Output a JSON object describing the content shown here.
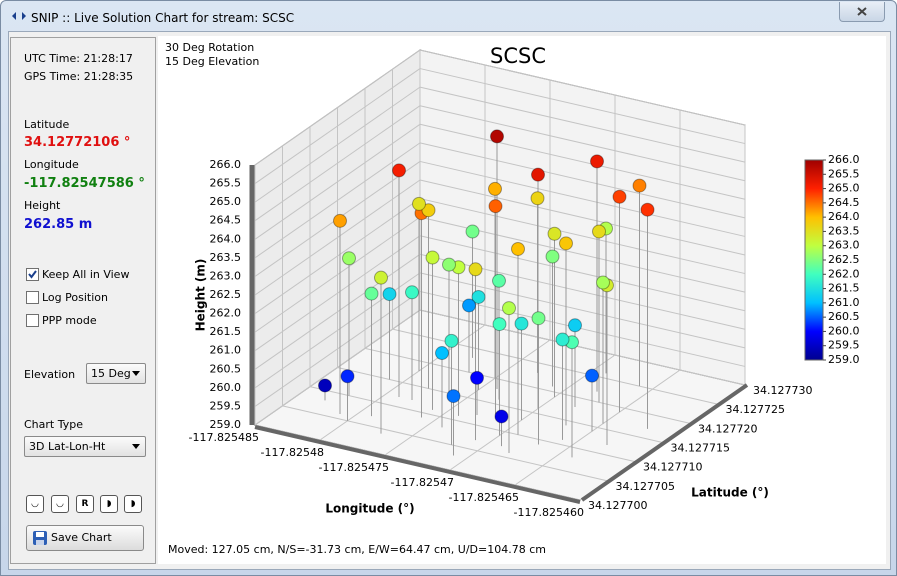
{
  "window": {
    "title": "SNIP :: Live Solution Chart for stream:  SCSC"
  },
  "sidebar": {
    "utc_time": "UTC Time: 21:28:17",
    "gps_time": "GPS Time: 21:28:35",
    "latitude_label": "Latitude",
    "latitude": "34.12772106 °",
    "longitude_label": "Longitude",
    "longitude": "-117.82547586 °",
    "height_label": "Height",
    "height": "262.85 m",
    "checkboxes": [
      {
        "label": "Keep All in View",
        "checked": true
      },
      {
        "label": "Log Position",
        "checked": false
      },
      {
        "label": "PPP mode",
        "checked": false
      }
    ],
    "elevation_label": "Elevation",
    "elevation_value": "15 Deg",
    "chart_type_label": "Chart Type",
    "chart_type_value": "3D Lat-Lon-Ht",
    "reset_button": "R",
    "save_button": "Save Chart"
  },
  "chart_data": {
    "type": "scatter3d",
    "title": "SCSC",
    "annotations": [
      "30 Deg Rotation",
      "15 Deg Elevation"
    ],
    "footer": "Moved: 127.05 cm, N/S=-31.73 cm, E/W=64.47 cm, U/D=104.78 cm",
    "x_label": "Longitude (°)",
    "y_label": "Latitude (°)",
    "z_label": "Height (m)",
    "xlim": [
      -117.825485,
      -117.82546
    ],
    "xticks": [
      -117.825485,
      -117.82548,
      -117.825475,
      -117.82547,
      -117.825465,
      {
        "value": -117.82546,
        "label": "-117.825460"
      }
    ],
    "ylim": [
      34.1277,
      34.12773
    ],
    "yticks": [
      {
        "value": 34.1277,
        "label": "34.127700"
      },
      34.127705,
      {
        "value": 34.12771,
        "label": "34.127710"
      },
      34.127715,
      {
        "value": 34.12772,
        "label": "34.127720"
      },
      34.127725,
      {
        "value": 34.12773,
        "label": "34.127730"
      }
    ],
    "zlim": [
      259,
      266
    ],
    "zticks": [
      {
        "value": 259,
        "label": "259.0"
      },
      {
        "value": 259.5,
        "label": "259.5"
      },
      {
        "value": 260,
        "label": "260.0"
      },
      {
        "value": 260.5,
        "label": "260.5"
      },
      {
        "value": 261,
        "label": "261.0"
      },
      {
        "value": 261.5,
        "label": "261.5"
      },
      {
        "value": 262,
        "label": "262.0"
      },
      {
        "value": 262.5,
        "label": "262.5"
      },
      {
        "value": 263,
        "label": "263.0"
      },
      {
        "value": 263.5,
        "label": "263.5"
      },
      {
        "value": 264,
        "label": "264.0"
      },
      {
        "value": 264.5,
        "label": "264.5"
      },
      {
        "value": 265,
        "label": "265.0"
      },
      {
        "value": 265.5,
        "label": "265.5"
      },
      {
        "value": 266,
        "label": "266.0"
      }
    ],
    "grid": true,
    "colorbar": true,
    "colormap": [
      "#00008f",
      "#0000ff",
      "#00c0ff",
      "#40ffbf",
      "#c0ff40",
      "#ffc000",
      "#ff2000",
      "#9f0000"
    ],
    "x": [
      -117.825474,
      -117.825479,
      -117.82547,
      -117.825468,
      -117.825476,
      -117.825465,
      -117.825481,
      -117.825472,
      -117.825469,
      -117.825466,
      -117.825475,
      -117.825478,
      -117.825471,
      -117.825467,
      -117.825473,
      -117.82548,
      -117.825463,
      -117.825477,
      -117.82547,
      -117.825474,
      -117.825468,
      -117.825482,
      -117.825465,
      -117.825476,
      -117.825471,
      -117.825479,
      -117.825467,
      -117.825473,
      -117.825469,
      -117.825464,
      -117.825478,
      -117.825472,
      -117.82547,
      -117.825475,
      -117.825466,
      -117.825481,
      -117.825468,
      -117.825474,
      -117.825477,
      -117.825471,
      -117.825465,
      -117.82548,
      -117.825473,
      -117.825469,
      -117.825483,
      -117.825476,
      -117.825467,
      -117.82547,
      -117.825462,
      -117.825478
    ],
    "y": [
      34.127718,
      34.127712,
      34.127716,
      34.127722,
      34.127709,
      34.127719,
      34.127706,
      34.127713,
      34.12771,
      34.127725,
      34.12772,
      34.127715,
      34.127707,
      34.127714,
      34.127723,
      34.127718,
      34.127712,
      34.127704,
      34.127719,
      34.127711,
      34.127706,
      34.12771,
      34.127716,
      34.127714,
      34.127721,
      34.127707,
      34.127709,
      34.127716,
      34.127726,
      34.127708,
      34.127712,
      34.127705,
      34.127713,
      34.127717,
      34.127711,
      34.127715,
      34.127718,
      34.127708,
      34.12772,
      34.127703,
      34.127714,
      34.127705,
      34.127712,
      34.127707,
      34.127708,
      34.127711,
      34.12772,
      34.127709,
      34.127717,
      34.127723
    ],
    "z": [
      265.8,
      265.1,
      265.3,
      265.2,
      264.5,
      264.8,
      264.2,
      264.6,
      264.0,
      264.4,
      264.1,
      263.8,
      263.6,
      263.9,
      263.7,
      263.5,
      263.3,
      263.2,
      263.4,
      263.0,
      262.9,
      262.7,
      262.8,
      262.6,
      262.5,
      262.3,
      262.4,
      262.2,
      262.9,
      262.1,
      261.9,
      261.8,
      261.6,
      261.5,
      261.7,
      261.3,
      261.2,
      261.0,
      260.8,
      260.6,
      260.5,
      260.2,
      260.0,
      259.8,
      259.4,
      263.1,
      263.6,
      262.0,
      264.9,
      262.4
    ]
  }
}
